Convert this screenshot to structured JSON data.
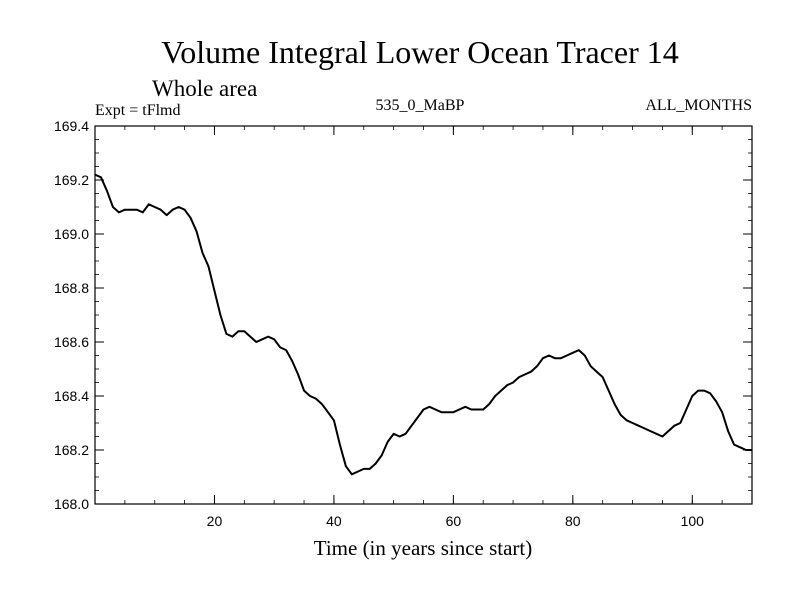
{
  "chart_data": {
    "type": "line",
    "title": "Volume Integral Lower Ocean Tracer 14",
    "subtitle": "Whole area",
    "info_left": "Expt = tFlmd",
    "info_center": "535_0_MaBP",
    "info_right": "ALL_MONTHS",
    "xlabel": "Time (in years since start)",
    "ylabel": "",
    "xlim": [
      0,
      110
    ],
    "ylim": [
      168.0,
      169.4
    ],
    "x_ticks": [
      20,
      40,
      60,
      80,
      100
    ],
    "y_ticks": [
      168.0,
      168.2,
      168.4,
      168.6,
      168.8,
      169.0,
      169.2,
      169.4
    ],
    "y_tick_labels": [
      "168.0",
      "168.2",
      "168.4",
      "168.6",
      "168.8",
      "169.0",
      "169.2",
      "169.4"
    ],
    "series": [
      {
        "name": "Tracer 14",
        "x": [
          0,
          1,
          2,
          3,
          4,
          5,
          6,
          7,
          8,
          9,
          10,
          11,
          12,
          13,
          14,
          15,
          16,
          17,
          18,
          19,
          20,
          21,
          22,
          23,
          24,
          25,
          26,
          27,
          28,
          29,
          30,
          31,
          32,
          33,
          34,
          35,
          36,
          37,
          38,
          39,
          40,
          41,
          42,
          43,
          44,
          45,
          46,
          47,
          48,
          49,
          50,
          51,
          52,
          53,
          54,
          55,
          56,
          57,
          58,
          59,
          60,
          61,
          62,
          63,
          64,
          65,
          66,
          67,
          68,
          69,
          70,
          71,
          72,
          73,
          74,
          75,
          76,
          77,
          78,
          79,
          80,
          81,
          82,
          83,
          84,
          85,
          86,
          87,
          88,
          89,
          90,
          91,
          92,
          93,
          94,
          95,
          96,
          97,
          98,
          99,
          100,
          101,
          102,
          103,
          104,
          105,
          106,
          107,
          108,
          109,
          110
        ],
        "y": [
          169.22,
          169.21,
          169.16,
          169.1,
          169.08,
          169.09,
          169.09,
          169.09,
          169.08,
          169.11,
          169.1,
          169.09,
          169.07,
          169.09,
          169.1,
          169.09,
          169.06,
          169.01,
          168.93,
          168.88,
          168.79,
          168.7,
          168.63,
          168.62,
          168.64,
          168.64,
          168.62,
          168.6,
          168.61,
          168.62,
          168.61,
          168.58,
          168.57,
          168.53,
          168.48,
          168.42,
          168.4,
          168.39,
          168.37,
          168.34,
          168.31,
          168.22,
          168.14,
          168.11,
          168.12,
          168.13,
          168.13,
          168.15,
          168.18,
          168.23,
          168.26,
          168.25,
          168.26,
          168.29,
          168.32,
          168.35,
          168.36,
          168.35,
          168.34,
          168.34,
          168.34,
          168.35,
          168.36,
          168.35,
          168.35,
          168.35,
          168.37,
          168.4,
          168.42,
          168.44,
          168.45,
          168.47,
          168.48,
          168.49,
          168.51,
          168.54,
          168.55,
          168.54,
          168.54,
          168.55,
          168.56,
          168.57,
          168.55,
          168.51,
          168.49,
          168.47,
          168.42,
          168.37,
          168.33,
          168.31,
          168.3,
          168.29,
          168.28,
          168.27,
          168.26,
          168.25,
          168.27,
          168.29,
          168.3,
          168.35,
          168.4,
          168.42,
          168.42,
          168.41,
          168.38,
          168.34,
          168.27,
          168.22,
          168.21,
          168.2,
          168.2
        ]
      }
    ]
  }
}
